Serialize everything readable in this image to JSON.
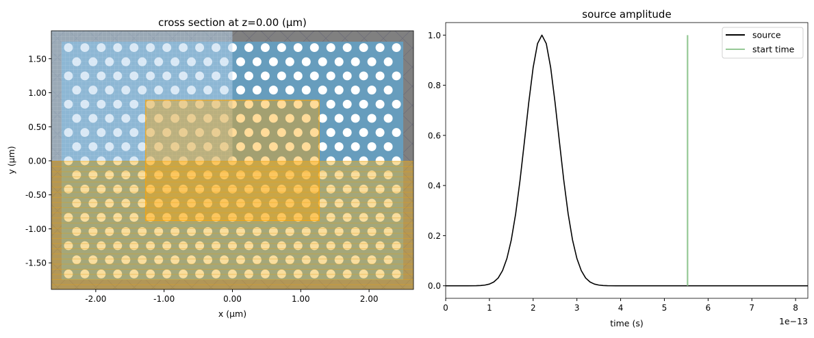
{
  "chart_data": [
    {
      "type": "heatmap",
      "title": "cross section at z=0.00 (μm)",
      "xlabel": "x (μm)",
      "ylabel": "y (μm)",
      "xlim": [
        -2.65,
        2.65
      ],
      "ylim": [
        -1.89,
        1.91
      ],
      "xticks": [
        "-2.00",
        "-1.00",
        "0.00",
        "1.00",
        "2.00"
      ],
      "xtick_values": [
        -2,
        -1,
        0,
        1,
        2
      ],
      "yticks": [
        "1.50",
        "1.00",
        "0.50",
        "0.00",
        "-0.50",
        "-1.00",
        "-1.50"
      ],
      "ytick_values": [
        1.5,
        1,
        0.5,
        0,
        -0.5,
        -1,
        -1.5
      ],
      "slab": {
        "x": [
          -2.5,
          2.5
        ],
        "y": [
          -1.75,
          1.75
        ],
        "color": "#679dbd"
      },
      "holes": {
        "lattice_constant": 0.24,
        "radius": 0.065,
        "rows": 17,
        "color": "#ffffff"
      },
      "boundary_color": "#808080",
      "symmetry_region": {
        "x": [
          -2.65,
          0
        ],
        "y": [
          0,
          1.91
        ],
        "color": "#b4d2ec"
      },
      "lower_region": {
        "x": [
          -2.65,
          2.65
        ],
        "y": [
          -1.89,
          0
        ],
        "color": "#f0b428"
      },
      "source_box": {
        "x": [
          -1.27,
          1.27
        ],
        "y": [
          -0.88,
          0.89
        ],
        "color": "#ffa500"
      }
    },
    {
      "type": "line",
      "title": "source amplitude",
      "xlabel": "time (s)",
      "ylabel": "",
      "x_offset_label": "1e−13",
      "xlim": [
        0,
        8.28
      ],
      "ylim": [
        -0.05,
        1.05
      ],
      "xticks": [
        "0",
        "1",
        "2",
        "3",
        "4",
        "5",
        "6",
        "7",
        "8"
      ],
      "yticks": [
        "0.0",
        "0.2",
        "0.4",
        "0.6",
        "0.8",
        "1.0"
      ],
      "legend": {
        "position": "top-right",
        "entries": [
          "source",
          "start time"
        ]
      },
      "series": [
        {
          "name": "source",
          "color": "#000000",
          "x": [
            0,
            0.5,
            0.7,
            0.8,
            0.9,
            1.0,
            1.1,
            1.2,
            1.3,
            1.4,
            1.5,
            1.6,
            1.7,
            1.8,
            1.9,
            2.0,
            2.1,
            2.2,
            2.3,
            2.4,
            2.5,
            2.6,
            2.7,
            2.8,
            2.9,
            3.0,
            3.1,
            3.2,
            3.3,
            3.4,
            3.5,
            3.6,
            3.7,
            3.9,
            4.5,
            8.28
          ],
          "y": [
            0,
            0.0,
            0.0002,
            0.0011,
            0.0029,
            0.0068,
            0.0151,
            0.031,
            0.0605,
            0.109,
            0.183,
            0.287,
            0.421,
            0.575,
            0.732,
            0.871,
            0.966,
            1.0,
            0.966,
            0.871,
            0.732,
            0.575,
            0.421,
            0.287,
            0.183,
            0.109,
            0.0605,
            0.031,
            0.0151,
            0.0068,
            0.0029,
            0.0011,
            0.0002,
            0.0,
            0,
            0
          ]
        },
        {
          "name": "start time",
          "color": "#95c895",
          "x": [
            5.53,
            5.53
          ],
          "y": [
            0,
            1.0
          ]
        }
      ]
    }
  ]
}
